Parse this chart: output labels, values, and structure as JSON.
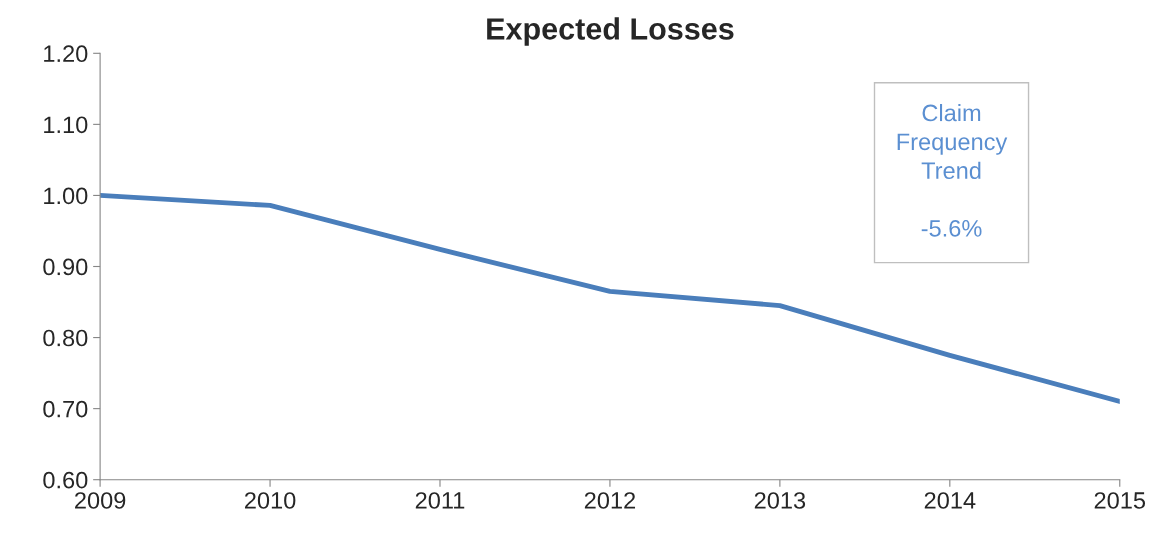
{
  "chart_data": {
    "type": "line",
    "title": "Expected Losses",
    "x": [
      2009,
      2010,
      2011,
      2012,
      2013,
      2014,
      2015
    ],
    "series": [
      {
        "color": "#4a7ebb",
        "values": [
          1.0,
          0.986,
          0.924,
          0.865,
          0.845,
          0.775,
          0.71
        ]
      }
    ],
    "xlim": [
      2009,
      2015
    ],
    "xticks": [
      2009,
      2010,
      2011,
      2012,
      2013,
      2014,
      2015
    ],
    "ylim": [
      0.6,
      1.2
    ],
    "yticks": [
      {
        "value": 0.6,
        "label": "0.60"
      },
      {
        "value": 0.7,
        "label": "0.70"
      },
      {
        "value": 0.8,
        "label": "0.80"
      },
      {
        "value": 0.9,
        "label": "0.90"
      },
      {
        "value": 1.0,
        "label": "1.00"
      },
      {
        "value": 1.1,
        "label": "1.10"
      },
      {
        "value": 1.2,
        "label": "1.20"
      }
    ],
    "annotations": [
      "Claim\nFrequency\nTrend\n\n-5.6%"
    ],
    "grid": false,
    "marker": "none",
    "line_style": "solid"
  }
}
